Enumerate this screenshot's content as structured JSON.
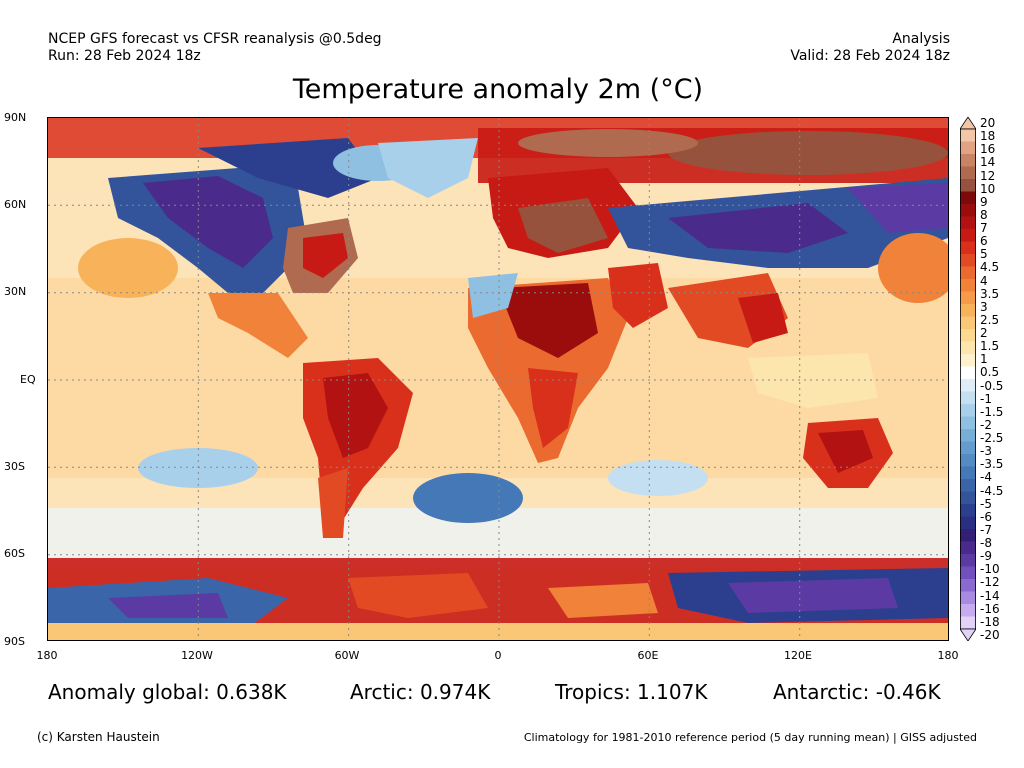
{
  "header": {
    "left_line1": "NCEP GFS forecast vs CFSR reanalysis @0.5deg",
    "left_line2": "Run: 28 Feb 2024 18z",
    "right_line1": "Analysis",
    "right_line2": "Valid: 28 Feb 2024 18z"
  },
  "title": "Temperature anomaly 2m (°C)",
  "map": {
    "lat_labels": [
      "90N",
      "60N",
      "30N",
      "EQ",
      "30S",
      "60S",
      "90S"
    ],
    "lon_labels": [
      "180",
      "120W",
      "60W",
      "0",
      "60E",
      "120E",
      "180"
    ]
  },
  "colorbar": {
    "labels": [
      "20",
      "18",
      "16",
      "14",
      "12",
      "10",
      "9",
      "8",
      "7",
      "6",
      "5",
      "4.5",
      "4",
      "3.5",
      "3",
      "2.5",
      "2",
      "1.5",
      "1",
      "0.5",
      "-0.5",
      "-1",
      "-1.5",
      "-2",
      "-2.5",
      "-3",
      "-3.5",
      "-4",
      "-4.5",
      "-5",
      "-6",
      "-7",
      "-8",
      "-9",
      "-10",
      "-12",
      "-14",
      "-16",
      "-18",
      "-20"
    ],
    "colors": [
      "#f3c6a8",
      "#e0a383",
      "#c98466",
      "#b06a50",
      "#96523c",
      "#7d0a0a",
      "#9b0d0d",
      "#b31212",
      "#c81a14",
      "#d9301c",
      "#e24a24",
      "#ea6a2f",
      "#f0823a",
      "#f49a48",
      "#f7b25a",
      "#f9c775",
      "#fbd98f",
      "#fce6ad",
      "#fdf0cc",
      "#ffffff",
      "#deedf7",
      "#c3dff1",
      "#a8d0ea",
      "#8fc0e2",
      "#78afd8",
      "#649dcd",
      "#548bc2",
      "#4578b6",
      "#3a65a8",
      "#33549b",
      "#2c3f8e",
      "#2a2f82",
      "#331f75",
      "#4a2b8c",
      "#5c3aa3",
      "#7050bd",
      "#8a6ad0",
      "#a88ae0",
      "#c6acee",
      "#e2d2f7"
    ]
  },
  "stats": {
    "global": "Anomaly global: 0.638K",
    "arctic": "Arctic: 0.974K",
    "tropics": "Tropics: 1.107K",
    "antarctic": "Antarctic: -0.46K"
  },
  "footer": {
    "left": "(c) Karsten Haustein",
    "right": "Climatology for 1981-2010 reference period (5 day running mean) | GISS adjusted"
  }
}
